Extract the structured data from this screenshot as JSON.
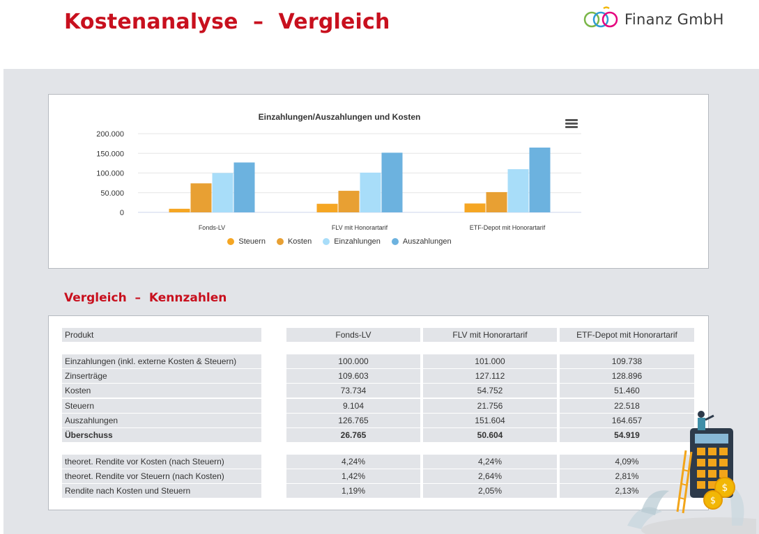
{
  "header": {
    "title": "Kostenanalyse  –  Vergleich",
    "logo_text": "Finanz GmbH"
  },
  "chart_data": {
    "type": "bar",
    "title": "Einzahlungen/Auszahlungen und Kosten",
    "categories": [
      "Fonds-LV",
      "FLV mit Honorartarif",
      "ETF-Depot mit Honorartarif"
    ],
    "series": [
      {
        "name": "Steuern",
        "values": [
          9104,
          21756,
          22518
        ],
        "color": "#f5a623"
      },
      {
        "name": "Kosten",
        "values": [
          73734,
          54752,
          51460
        ],
        "color": "#e8a033"
      },
      {
        "name": "Einzahlungen",
        "values": [
          100000,
          101000,
          109738
        ],
        "color": "#a8ddf9"
      },
      {
        "name": "Auszahlungen",
        "values": [
          126765,
          151604,
          164657
        ],
        "color": "#6cb2df"
      }
    ],
    "ylim": [
      0,
      200000
    ],
    "yticks": [
      "0",
      "50.000",
      "100.000",
      "150.000",
      "200.000"
    ],
    "ytick_values": [
      0,
      50000,
      100000,
      150000,
      200000
    ],
    "grid": true,
    "legend": "bottom"
  },
  "chart_menu_icon": "hamburger-menu-icon",
  "kennzahlen": {
    "title": "Vergleich  –  Kennzahlen",
    "header": {
      "label": "Produkt",
      "cols": [
        "Fonds-LV",
        "FLV mit Honorartarif",
        "ETF-Depot mit Honorartarif"
      ]
    },
    "rows": [
      {
        "label": "Einzahlungen (inkl. externe Kosten & Steuern)",
        "values": [
          "100.000",
          "101.000",
          "109.738"
        ]
      },
      {
        "label": "Zinserträge",
        "values": [
          "109.603",
          "127.112",
          "128.896"
        ]
      },
      {
        "label": "Kosten",
        "values": [
          "73.734",
          "54.752",
          "51.460"
        ]
      },
      {
        "label": "Steuern",
        "values": [
          "9.104",
          "21.756",
          "22.518"
        ]
      },
      {
        "label": "Auszahlungen",
        "values": [
          "126.765",
          "151.604",
          "164.657"
        ]
      },
      {
        "label": "Überschuss",
        "values": [
          "26.765",
          "50.604",
          "54.919"
        ]
      }
    ],
    "rendite_rows": [
      {
        "label": "theoret. Rendite vor Kosten (nach Steuern)",
        "values": [
          "4,24%",
          "4,24%",
          "4,09%"
        ]
      },
      {
        "label": "theoret. Rendite vor Steuern (nach Kosten)",
        "values": [
          "1,42%",
          "2,64%",
          "2,81%"
        ]
      },
      {
        "label": "Rendite nach Kosten und Steuern",
        "values": [
          "1,19%",
          "2,05%",
          "2,13%"
        ]
      }
    ]
  },
  "colors": {
    "accent_red": "#c8101e",
    "panel_grey": "#e2e4e8"
  }
}
